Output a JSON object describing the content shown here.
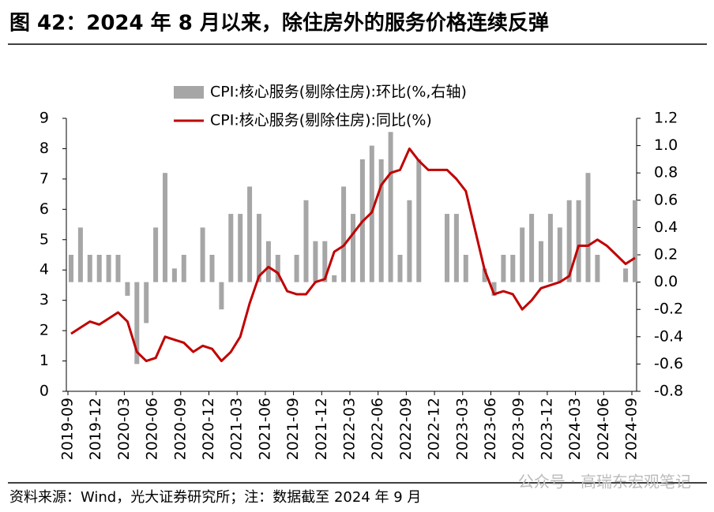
{
  "title": "图 42：2024 年 8 月以来，除住房外的服务价格连续反弹",
  "source": "资料来源：Wind，光大证券研究所；注：数据截至 2024 年 9 月",
  "watermark": "公众号 · 高瑞东宏观笔记",
  "chart_data": {
    "type": "bar-line",
    "categories": [
      "2019-09",
      null,
      null,
      "2019-12",
      null,
      null,
      "2020-03",
      null,
      null,
      "2020-06",
      null,
      null,
      "2020-09",
      null,
      null,
      "2020-12",
      null,
      null,
      "2021-03",
      null,
      null,
      "2021-06",
      null,
      null,
      "2021-09",
      null,
      null,
      "2021-12",
      null,
      null,
      "2022-03",
      null,
      null,
      "2022-06",
      null,
      null,
      "2022-09",
      null,
      null,
      "2022-12",
      null,
      null,
      "2023-03",
      null,
      null,
      "2023-06",
      null,
      null,
      "2023-09",
      null,
      null,
      "2023-12",
      null,
      null,
      "2024-03",
      null,
      null,
      "2024-06",
      null,
      null,
      "2024-09"
    ],
    "series": [
      {
        "name": "CPI:核心服务(剔除住房):环比(%,右轴)",
        "type": "bar",
        "axis": "y2",
        "color": "#a6a6a6",
        "values": [
          0.2,
          0.4,
          0.2,
          0.2,
          0.2,
          0.2,
          -0.1,
          -0.6,
          -0.3,
          0.4,
          0.8,
          0.1,
          0.2,
          0,
          0.4,
          0.2,
          -0.2,
          0.5,
          0.5,
          0.7,
          0.5,
          0.3,
          0.2,
          0,
          0.2,
          0.6,
          0.3,
          0.3,
          0.05,
          0.7,
          0.5,
          0.9,
          1.0,
          0.9,
          1.1,
          0.2,
          0.6,
          0.9,
          0,
          0,
          0.5,
          0.5,
          0.2,
          0,
          0.1,
          -0.1,
          0.2,
          0.2,
          0.4,
          0.5,
          0.3,
          0.5,
          0.4,
          0.6,
          0.6,
          0.8,
          0.2,
          0,
          0,
          0.1,
          0.6
        ]
      },
      {
        "name": "CPI:核心服务(剔除住房):同比(%)",
        "type": "line",
        "color": "#c00000",
        "values": [
          1.9,
          2.1,
          2.3,
          2.2,
          2.4,
          2.6,
          2.3,
          1.3,
          1.0,
          1.1,
          1.8,
          1.7,
          1.6,
          1.3,
          1.5,
          1.4,
          1.0,
          1.3,
          1.8,
          2.9,
          3.8,
          4.1,
          3.9,
          3.3,
          3.2,
          3.2,
          3.6,
          3.7,
          4.6,
          4.8,
          5.2,
          5.6,
          5.9,
          6.8,
          7.2,
          7.3,
          8.0,
          7.6,
          7.3,
          7.3,
          7.3,
          7.0,
          6.6,
          5.3,
          4.0,
          3.2,
          3.3,
          3.2,
          2.7,
          3.0,
          3.4,
          3.5,
          3.6,
          3.8,
          4.8,
          4.8,
          5.0,
          4.8,
          4.5,
          4.2,
          4.4
        ]
      }
    ],
    "ylim": [
      0,
      9
    ],
    "yticks": [
      0,
      1,
      2,
      3,
      4,
      5,
      6,
      7,
      8,
      9
    ],
    "y2lim": [
      -0.8,
      1.2
    ],
    "y2ticks": [
      -0.8,
      -0.6,
      -0.4,
      -0.2,
      {
        "value": 0,
        "label": "0.0"
      },
      0.2,
      0.4,
      0.6,
      0.8,
      {
        "value": 1,
        "label": "1.0"
      },
      1.2
    ]
  }
}
